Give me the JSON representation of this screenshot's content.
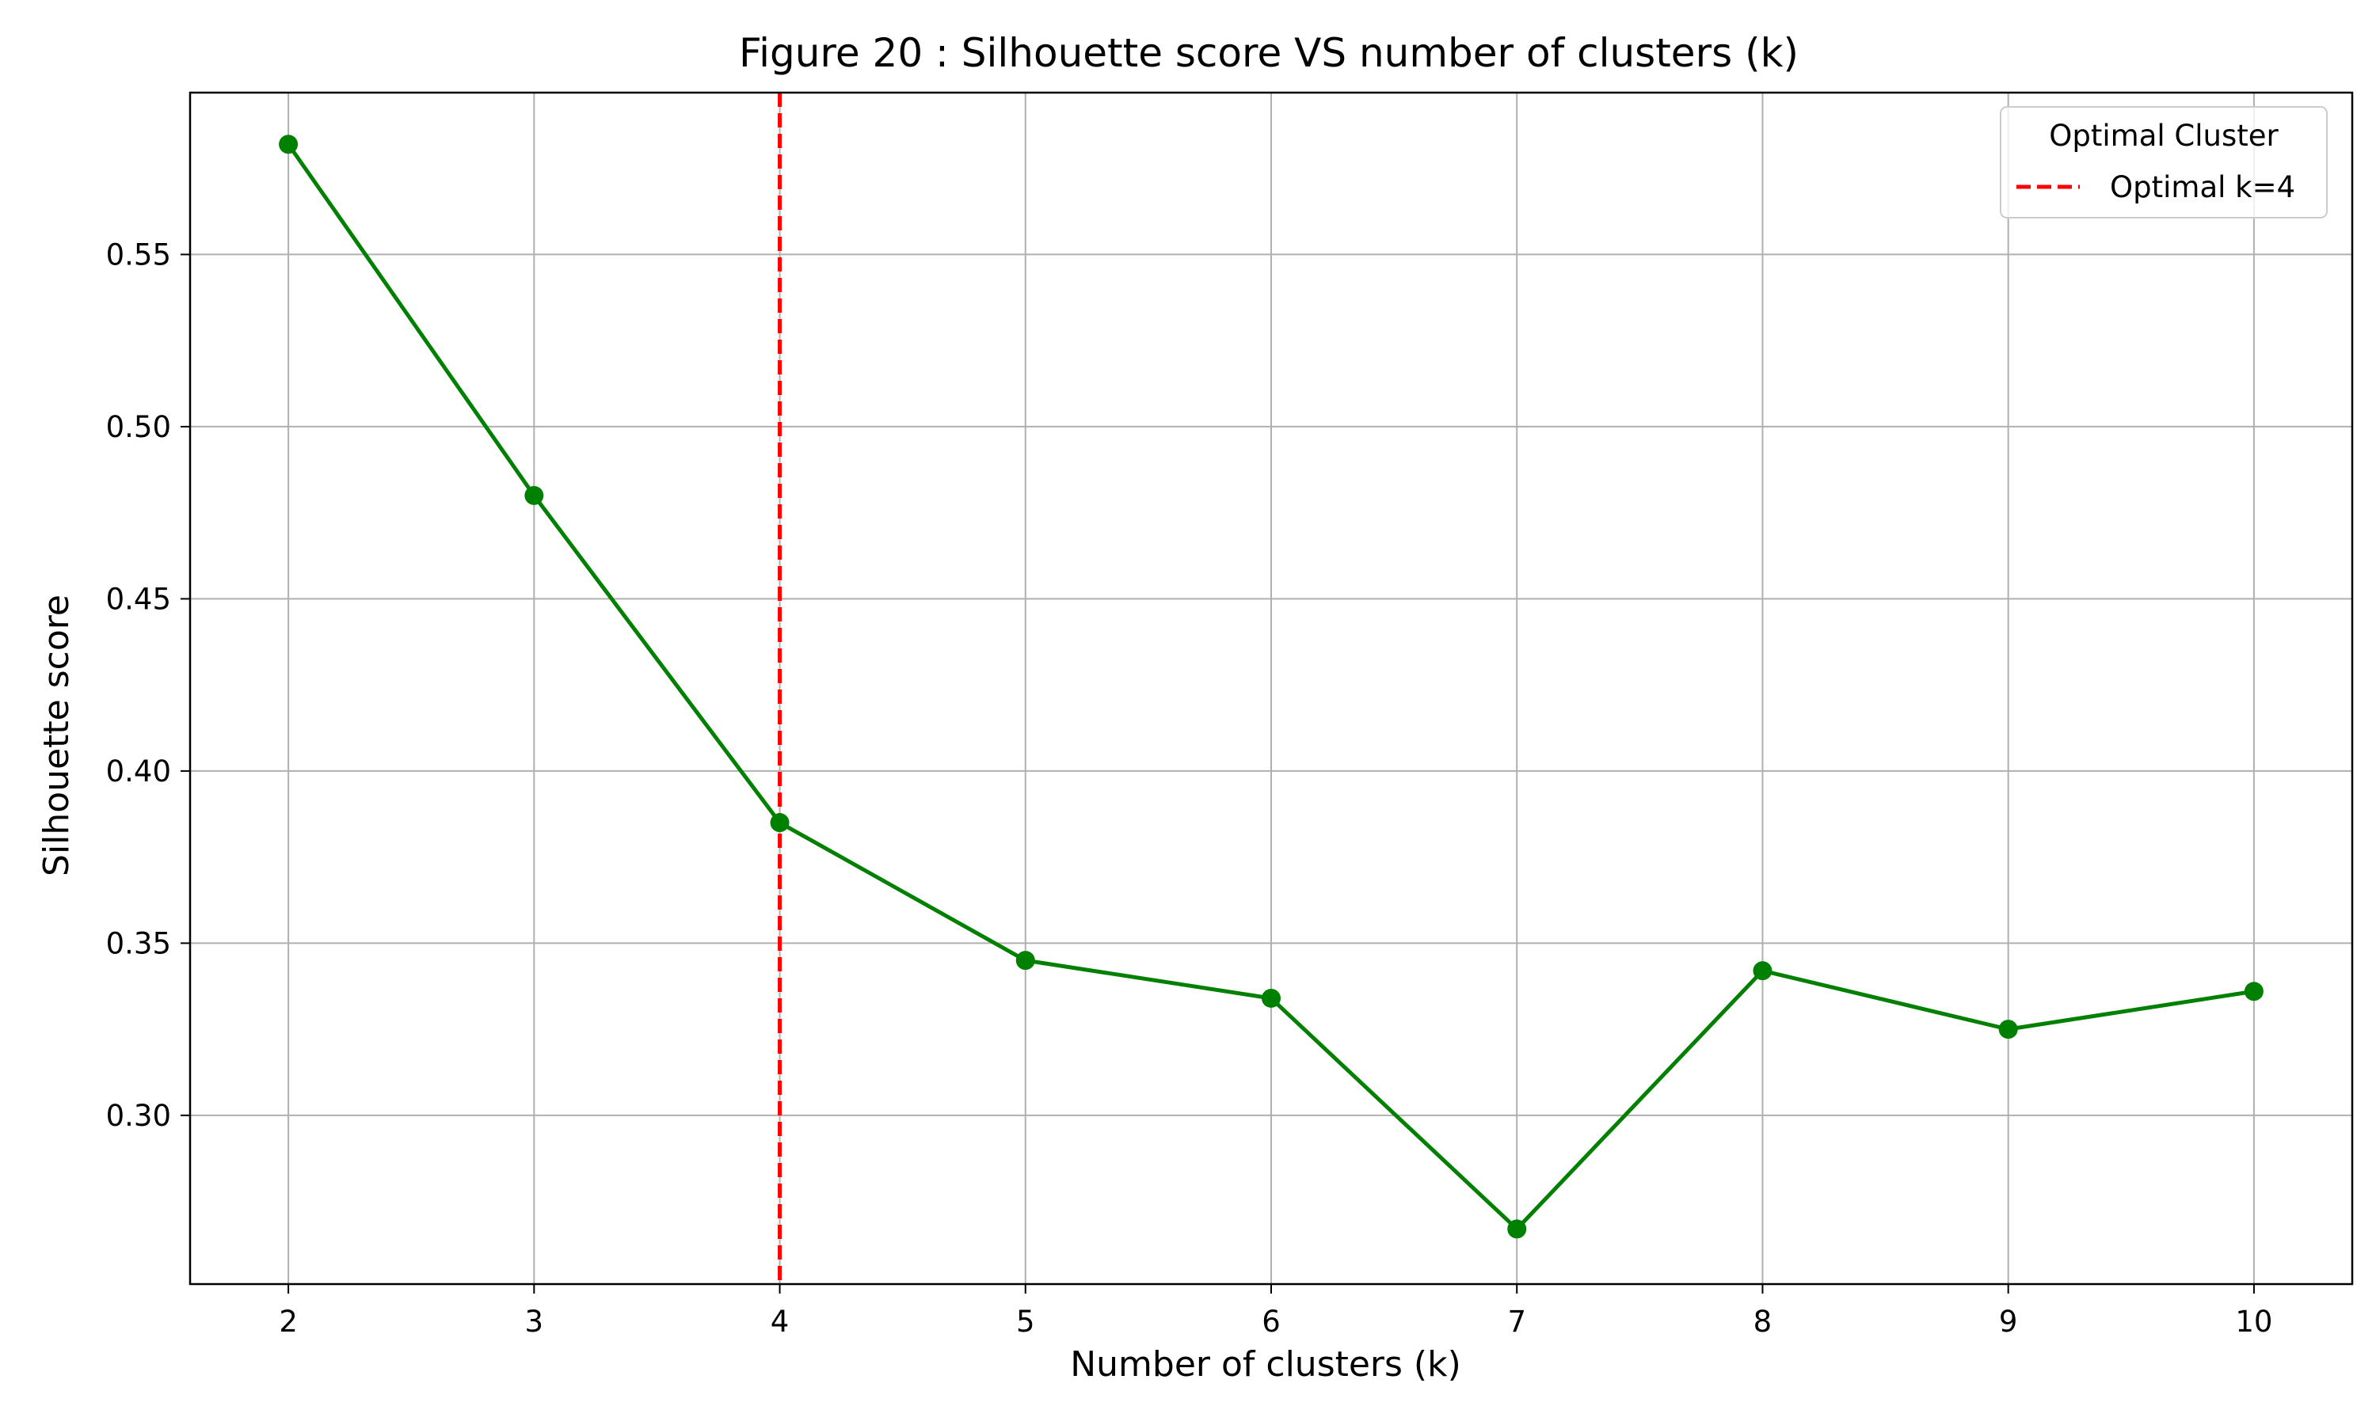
{
  "chart_data": {
    "type": "line",
    "title": "Figure 20 : Silhouette score VS number of clusters (k)",
    "xlabel": "Number of clusters (k)",
    "ylabel": "Silhouette score",
    "x": [
      2,
      3,
      4,
      5,
      6,
      7,
      8,
      9,
      10
    ],
    "xlim": [
      1.6,
      10.4
    ],
    "ylim": [
      0.251,
      0.597
    ],
    "x_ticks": [
      "2",
      "3",
      "4",
      "5",
      "6",
      "7",
      "8",
      "9",
      "10"
    ],
    "y_ticks": [
      {
        "value": 0.3,
        "label": "0.30"
      },
      {
        "value": 0.35,
        "label": "0.35"
      },
      {
        "value": 0.4,
        "label": "0.40"
      },
      {
        "value": 0.45,
        "label": "0.45"
      },
      {
        "value": 0.5,
        "label": "0.50"
      },
      {
        "value": 0.55,
        "label": "0.55"
      }
    ],
    "grid": true,
    "series": [
      {
        "values": [
          0.582,
          0.48,
          0.385,
          0.345,
          0.334,
          0.267,
          0.342,
          0.325,
          0.336
        ],
        "color": "#008000",
        "marker": "circle"
      }
    ],
    "reference_line": {
      "orientation": "vertical",
      "x": 4,
      "style": "dashed",
      "color": "#ff0000",
      "label": "Optimal k=4"
    },
    "legend": {
      "title": "Optimal Cluster",
      "placement": "top-right"
    }
  }
}
